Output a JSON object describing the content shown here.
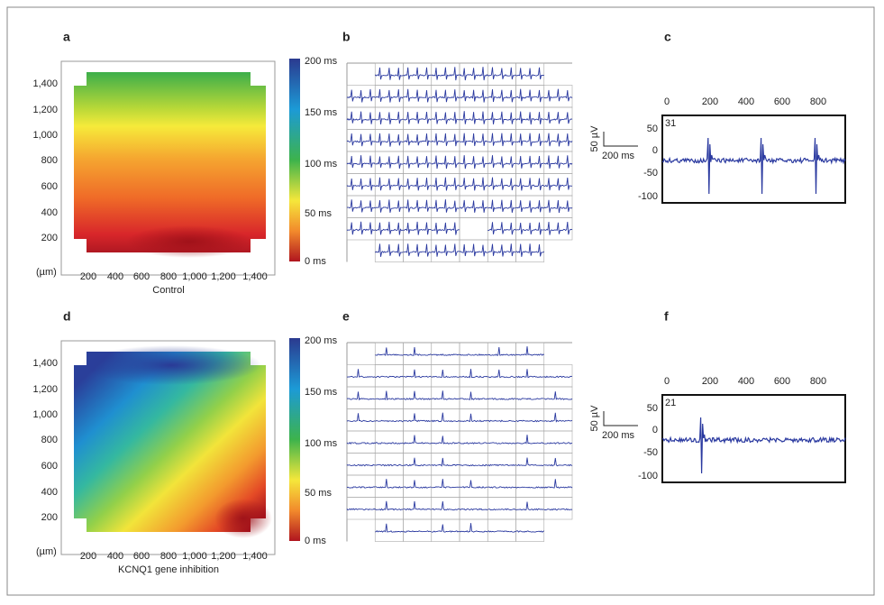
{
  "panels": [
    {
      "label": "a",
      "y_ticks": [
        "1,400",
        "1,200",
        "1,000",
        "800",
        "600",
        "400",
        "200"
      ],
      "x_ticks": [
        "200",
        "400",
        "600",
        "800",
        "1,000",
        "1,200",
        "1,400"
      ],
      "unit": "(µm)",
      "caption": "Control",
      "colorbar": [
        "200 ms",
        "150 ms",
        "100 ms",
        "50 ms",
        "0 ms"
      ]
    },
    {
      "label": "b"
    },
    {
      "label": "c",
      "x_ticks": [
        0,
        200,
        400,
        600,
        800
      ],
      "y_ticks": [
        50,
        0,
        -50,
        -100
      ],
      "channel": "31",
      "scale_v": "50 µV",
      "scale_t": "200 ms"
    },
    {
      "label": "d",
      "y_ticks": [
        "1,400",
        "1,200",
        "1,000",
        "800",
        "600",
        "400",
        "200"
      ],
      "x_ticks": [
        "200",
        "400",
        "600",
        "800",
        "1,000",
        "1,200",
        "1,400"
      ],
      "unit": "(µm)",
      "caption": "KCNQ1 gene inhibition",
      "colorbar": [
        "200 ms",
        "150 ms",
        "100 ms",
        "50 ms",
        "0 ms"
      ]
    },
    {
      "label": "e"
    },
    {
      "label": "f",
      "x_ticks": [
        0,
        200,
        400,
        600,
        800
      ],
      "y_ticks": [
        50,
        0,
        -50,
        -100
      ],
      "channel": "21",
      "scale_v": "50 µV",
      "scale_t": "200 ms"
    }
  ]
}
